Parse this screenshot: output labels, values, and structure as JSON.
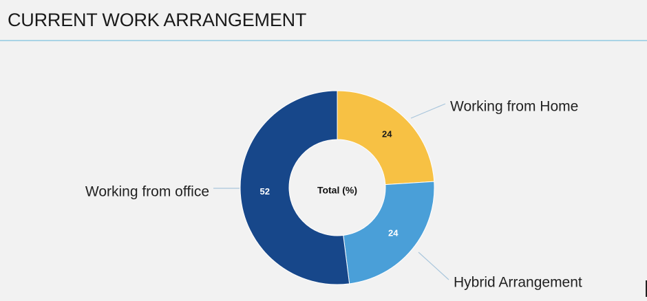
{
  "header": {
    "title": "CURRENT WORK ARRANGEMENT"
  },
  "chart_data": {
    "type": "pie",
    "donut": true,
    "center_label": "Total (%)",
    "slices": [
      {
        "label": "Working from Home",
        "value": 24,
        "color": "#f7c144",
        "value_color": "#1a1a1a"
      },
      {
        "label": "Hybrid Arrangement",
        "value": 24,
        "color": "#4a9fd8",
        "value_color": "#ffffff"
      },
      {
        "label": "Working from office",
        "value": 52,
        "color": "#17478a",
        "value_color": "#ffffff"
      }
    ],
    "leader_color": "#a9c6dc"
  }
}
